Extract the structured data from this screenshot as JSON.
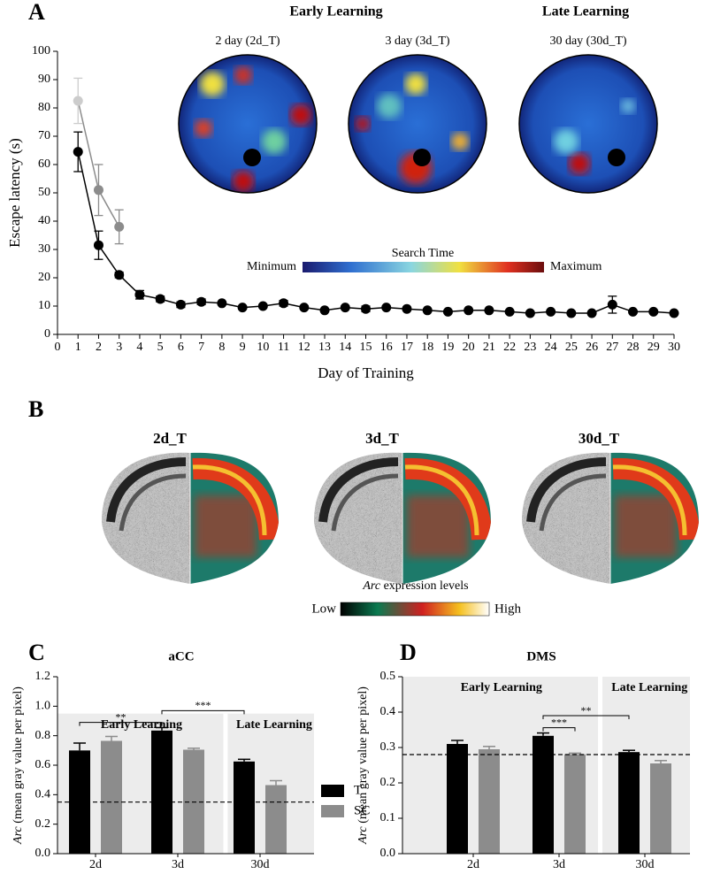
{
  "chart_data": [
    {
      "type": "line",
      "label": "A",
      "x_label": "Day of Training",
      "y_label": "Escape latency (s)",
      "x": [
        1,
        2,
        3,
        4,
        5,
        6,
        7,
        8,
        9,
        10,
        11,
        12,
        13,
        14,
        15,
        16,
        17,
        18,
        19,
        20,
        21,
        22,
        23,
        24,
        25,
        26,
        27,
        28,
        29,
        30
      ],
      "xlim": [
        0,
        30
      ],
      "xticks": [
        0,
        1,
        2,
        3,
        4,
        5,
        6,
        7,
        8,
        9,
        10,
        11,
        12,
        13,
        14,
        15,
        16,
        17,
        18,
        19,
        20,
        21,
        22,
        23,
        24,
        25,
        26,
        27,
        28,
        29,
        30
      ],
      "ylim": [
        0,
        100
      ],
      "yticks": [
        0,
        10,
        20,
        30,
        40,
        50,
        60,
        70,
        80,
        90,
        100
      ],
      "series": [
        {
          "color": "#000000",
          "values": [
            64.5,
            31.5,
            21,
            14,
            12.5,
            10.5,
            11.5,
            11,
            9.5,
            10,
            11,
            9.5,
            8.5,
            9.5,
            9,
            9.5,
            9,
            8.5,
            8,
            8.5,
            8.5,
            8,
            7.5,
            8,
            7.5,
            7.5,
            10.5,
            8,
            8,
            7.5
          ],
          "errors": [
            7,
            5,
            1,
            1.5,
            1,
            1,
            1,
            0.5,
            0.5,
            0.5,
            1,
            0.5,
            0.5,
            0.5,
            1,
            0.5,
            0.5,
            0.5,
            0.5,
            0.5,
            0.5,
            0.5,
            0.5,
            0.5,
            0.5,
            0.5,
            3,
            0.5,
            0.5,
            0.5
          ]
        },
        {
          "color": "#8c8c8c",
          "x": [
            1,
            2,
            3
          ],
          "values": [
            82.5,
            51,
            38
          ],
          "errors": [
            8,
            9,
            6
          ],
          "point_colors": [
            "#cccccc",
            "#8c8c8c",
            "#8c8c8c"
          ]
        }
      ],
      "heatmap_groups": [
        "Early Learning",
        "Late Learning"
      ],
      "heatmaps": [
        "2 day (2d_T)",
        "3 day (3d_T)",
        "30 day (30d_T)"
      ],
      "colorbar": {
        "title": "Search Time",
        "min_label": "Minimum",
        "max_label": "Maximum"
      }
    },
    {
      "type": "bar",
      "label": "C",
      "title": "aCC",
      "categories": [
        "2d",
        "3d",
        "30d"
      ],
      "series": [
        {
          "name": "T",
          "color": "#000000",
          "values": [
            0.7,
            0.835,
            0.625
          ],
          "errors": [
            0.05,
            0.02,
            0.015
          ]
        },
        {
          "name": "SC",
          "color": "#8c8c8c",
          "values": [
            0.765,
            0.705,
            0.465
          ],
          "errors": [
            0.03,
            0.01,
            0.03
          ]
        }
      ],
      "ylim": [
        0,
        1.2
      ],
      "yticks": [
        {
          "value": 0,
          "label": "0.0"
        },
        0.2,
        0.4,
        0.6,
        0.8,
        {
          "value": 1,
          "label": "1.0"
        },
        1.2
      ],
      "y_label_italic": "Arc",
      "y_label": "(mean gray value per pixel)",
      "baseline": 0.35,
      "shade_top": 0.95,
      "groups": [
        "Early Learning",
        "Late Learning"
      ],
      "significance": [
        "**",
        "***"
      ]
    },
    {
      "type": "bar",
      "label": "D",
      "title": "DMS",
      "categories": [
        "2d",
        "3d",
        "30d"
      ],
      "series": [
        {
          "color": "#000000",
          "values": [
            0.31,
            0.333,
            0.287
          ],
          "errors": [
            0.01,
            0.008,
            0.005
          ]
        },
        {
          "color": "#8c8c8c",
          "values": [
            0.295,
            0.281,
            0.255
          ],
          "errors": [
            0.008,
            0.003,
            0.008
          ]
        }
      ],
      "ylim": [
        0,
        0.5
      ],
      "yticks": [
        {
          "value": 0,
          "label": "0.0"
        },
        0.1,
        0.2,
        0.3,
        0.4,
        0.5
      ],
      "y_label_italic": "Arc",
      "y_label": "(mean gray value per pixel)",
      "baseline": 0.28,
      "shade_top": 0.5,
      "groups": [
        "Early Learning",
        "Late Learning"
      ],
      "significance": [
        "***",
        "**"
      ]
    }
  ],
  "panel_b": {
    "label": "B",
    "titles": [
      "2d_T",
      "3d_T",
      "30d_T"
    ],
    "colorbar": {
      "title_italic": "Arc",
      "title": "expression levels",
      "min_label": "Low",
      "max_label": "High"
    }
  }
}
